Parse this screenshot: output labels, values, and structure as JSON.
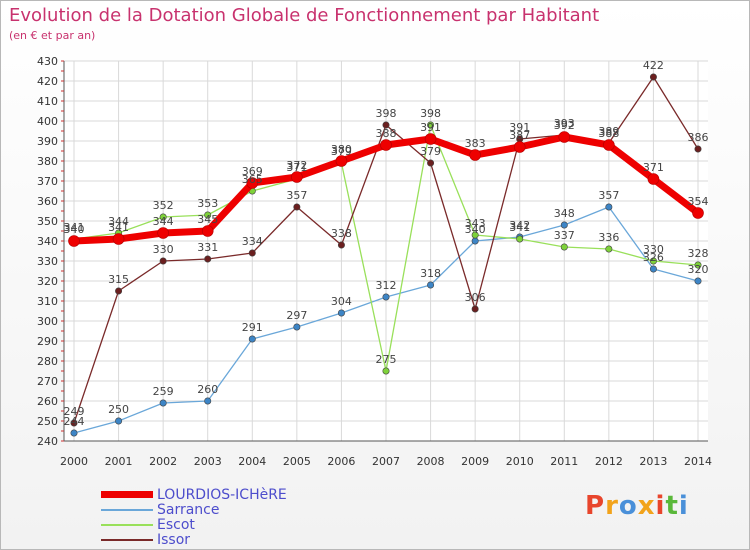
{
  "title": "Evolution de la Dotation Globale de Fonctionnement par Habitant",
  "subtitle": "(en € et par an)",
  "logo_text": "Proxiti",
  "logo_colors": [
    "#e8452c",
    "#f2a31b",
    "#4a90d9",
    "#f2a31b",
    "#e8452c",
    "#5ab83a",
    "#4a90d9"
  ],
  "chart_data": {
    "type": "line",
    "x": [
      "2000",
      "2001",
      "2002",
      "2003",
      "2004",
      "2005",
      "2006",
      "2007",
      "2008",
      "2009",
      "2010",
      "2011",
      "2012",
      "2013",
      "2014"
    ],
    "ylim": [
      240,
      430
    ],
    "ytick_step": 10,
    "grid": true,
    "series": [
      {
        "name": "LOURDIOS-ICHèRE",
        "color": "#ee0000",
        "marker": "#ee0000",
        "emphasis": true,
        "values": [
          340,
          341,
          344,
          345,
          369,
          372,
          380,
          388,
          391,
          383,
          387,
          392,
          388,
          371,
          354
        ]
      },
      {
        "name": "Sarrance",
        "color": "#6aa7d9",
        "marker": "#3d85c6",
        "values": [
          244,
          250,
          259,
          260,
          291,
          297,
          304,
          312,
          318,
          340,
          342,
          348,
          357,
          326,
          320
        ]
      },
      {
        "name": "Escot",
        "color": "#99e05a",
        "marker": "#7ed23a",
        "values": [
          341,
          344,
          352,
          353,
          365,
          371,
          379,
          275,
          398,
          343,
          341,
          337,
          336,
          330,
          328
        ]
      },
      {
        "name": "Issor",
        "color": "#7a2a2a",
        "marker": "#6b1f1f",
        "values": [
          249,
          315,
          330,
          331,
          334,
          357,
          338,
          398,
          379,
          306,
          391,
          393,
          389,
          422,
          386
        ]
      }
    ]
  }
}
